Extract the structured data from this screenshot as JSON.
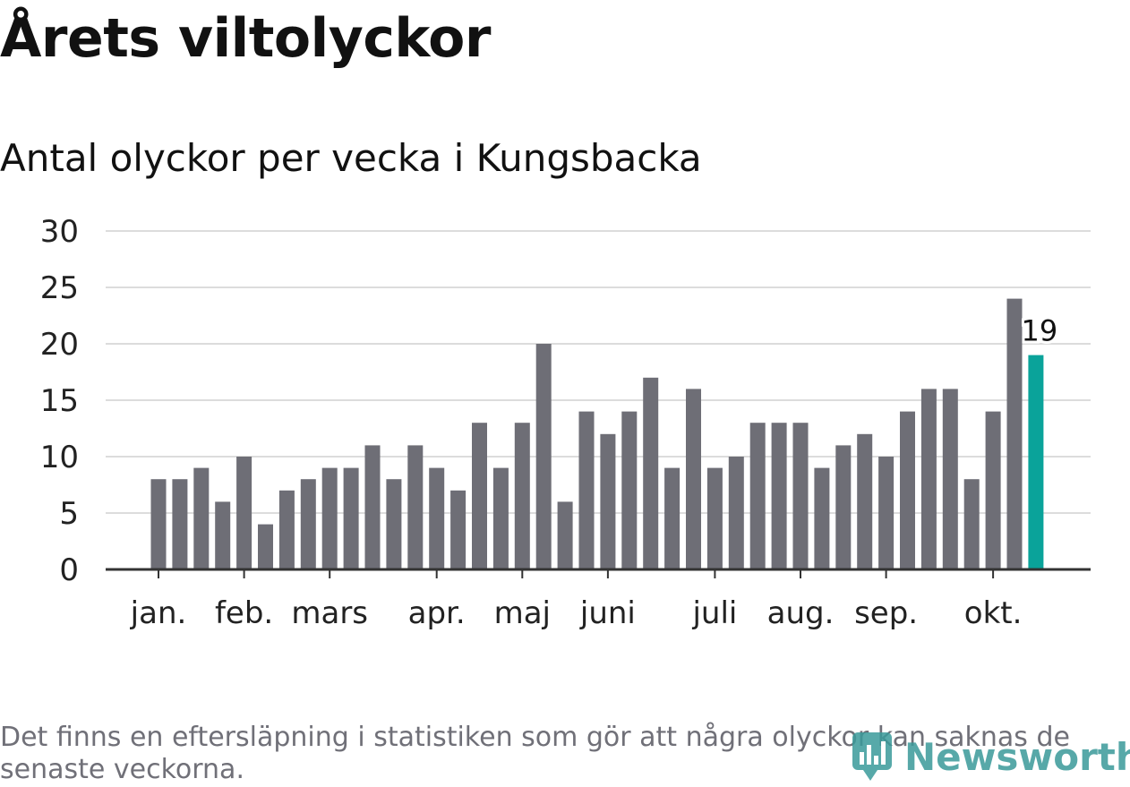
{
  "title": "Årets viltolyckor",
  "subtitle": "Antal olyckor per vecka i Kungsbacka",
  "footnote": "Det finns en eftersläpning i statistiken som gör att några olyckor kan saknas de senaste veckorna.",
  "logo_text": "Newsworthy",
  "colors": {
    "bar": "#6e6e76",
    "highlight": "#0aa39a",
    "grid": "#dcdcdc",
    "axis": "#333333",
    "logo": "#3a9a9a"
  },
  "chart_data": {
    "type": "bar",
    "title": "Antal olyckor per vecka i Kungsbacka",
    "xlabel": "",
    "ylabel": "",
    "ylim": [
      0,
      30
    ],
    "y_ticks": [
      "0",
      "5",
      "10",
      "15",
      "20",
      "25",
      "30"
    ],
    "x_ticks": [
      "jan.",
      "feb.",
      "mars",
      "apr.",
      "maj",
      "juni",
      "juli",
      "aug.",
      "sep.",
      "okt."
    ],
    "x_tick_weeks": [
      1,
      5,
      9,
      14,
      18,
      22,
      27,
      31,
      35,
      40
    ],
    "weeks": [
      1,
      2,
      3,
      4,
      5,
      6,
      7,
      8,
      9,
      10,
      11,
      12,
      13,
      14,
      15,
      16,
      17,
      18,
      19,
      20,
      21,
      22,
      23,
      24,
      25,
      26,
      27,
      28,
      29,
      30,
      31,
      32,
      33,
      34,
      35,
      36,
      37,
      38,
      39,
      40,
      41,
      42
    ],
    "values": [
      8,
      8,
      9,
      6,
      10,
      4,
      7,
      8,
      9,
      9,
      11,
      8,
      11,
      9,
      7,
      13,
      9,
      13,
      20,
      6,
      14,
      12,
      14,
      17,
      9,
      16,
      9,
      10,
      13,
      13,
      13,
      9,
      11,
      12,
      10,
      14,
      16,
      16,
      8,
      14,
      24,
      19
    ],
    "highlight_last": true,
    "annotation": "19",
    "grid": true
  }
}
